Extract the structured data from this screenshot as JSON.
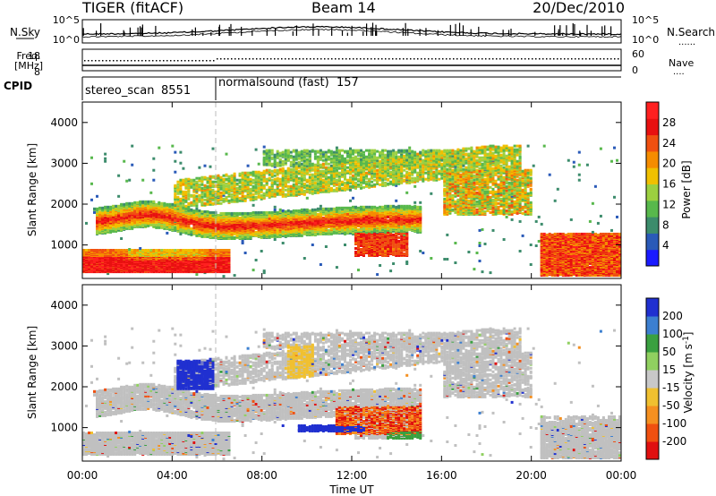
{
  "header": {
    "radar": "TIGER (fitACF)",
    "beam": "Beam 14",
    "date": "20/Dec/2010"
  },
  "noise_panel": {
    "left_label": "N.Sky",
    "left_ticks": [
      "10^5",
      "10^0"
    ],
    "right_ticks": [
      "10^5",
      "10^0"
    ],
    "right_label": "N.Search",
    "right_dotted": "......"
  },
  "freq_panel": {
    "left_label_1": "Freq.",
    "left_label_2": "[MHz]",
    "left_ticks": [
      "18",
      "8"
    ],
    "right_ticks": [
      "60",
      "0"
    ],
    "right_label": "Nave",
    "right_dotted": "...."
  },
  "cpid_panel": {
    "label": "CPID",
    "modes": [
      {
        "name": "stereo_scan",
        "id": "8551",
        "start": "00:00"
      },
      {
        "name": "normalsound (fast)",
        "id": "157",
        "start": "06:00"
      }
    ]
  },
  "time_axis": {
    "label": "Time UT",
    "ticks": [
      "00:00",
      "04:00",
      "08:00",
      "12:00",
      "16:00",
      "20:00",
      "00:00"
    ]
  },
  "colors": {
    "power_scale": [
      "#1a1aff",
      "#2a5ab8",
      "#3c8c6c",
      "#58b84c",
      "#9cd040",
      "#f0c000",
      "#f58c00",
      "#f05010",
      "#e81010",
      "#ff2020"
    ],
    "velocity_scale": [
      "#2030d0",
      "#3c7fd0",
      "#3aa040",
      "#90d060",
      "#c8c8c8",
      "#f0c030",
      "#f59020",
      "#f05010",
      "#e01010"
    ],
    "ground_scatter": "#c0c0c0"
  },
  "chart_data": [
    {
      "type": "heatmap",
      "title": "",
      "ylabel": "Slant Range [km]",
      "xlabel": "",
      "x_range": [
        "00:00",
        "24:00"
      ],
      "ylim": [
        180,
        4500
      ],
      "y_ticks": [
        1000,
        2000,
        3000,
        4000
      ],
      "colorbar": {
        "label": "Power [dB]",
        "ticks": [
          4,
          8,
          12,
          16,
          20,
          24,
          28
        ],
        "range": [
          0,
          32
        ]
      },
      "features": [
        {
          "name": "near_range_band",
          "t_hours": [
            0,
            6.5
          ],
          "range_km": [
            300,
            800
          ],
          "typical_power_db": 26
        },
        {
          "name": "main_band_1500km",
          "t_hours": [
            1,
            14.5
          ],
          "range_km": [
            1200,
            1900
          ],
          "typical_power_db": 22
        },
        {
          "name": "upper_band",
          "t_hours": [
            4,
            19.5
          ],
          "range_km": [
            2000,
            3300
          ],
          "typical_power_db": 14
        },
        {
          "name": "late_near_range",
          "t_hours": [
            20.3,
            24
          ],
          "range_km": [
            200,
            1200
          ],
          "typical_power_db": 26
        }
      ]
    },
    {
      "type": "heatmap",
      "title": "",
      "ylabel": "Slant Range [km]",
      "xlabel": "Time UT",
      "x_range": [
        "00:00",
        "24:00"
      ],
      "ylim": [
        180,
        4500
      ],
      "y_ticks": [
        1000,
        2000,
        3000,
        4000
      ],
      "colorbar": {
        "label": "Velocity [m s^-1]",
        "ticks": [
          "200",
          "100",
          "50",
          "15",
          "-15",
          "-50",
          "-100",
          "-200"
        ],
        "range": [
          -250,
          250
        ]
      },
      "features": [
        {
          "name": "ground_scatter",
          "t_hours": [
            0,
            24
          ],
          "range_km": [
            300,
            3300
          ],
          "velocity": 0
        },
        {
          "name": "positive_patch_5h",
          "t_hours": [
            4.2,
            5.8
          ],
          "range_km": [
            1900,
            2600
          ],
          "velocity": 200
        },
        {
          "name": "negative_patch_13h",
          "t_hours": [
            11.5,
            15
          ],
          "range_km": [
            700,
            1500
          ],
          "velocity": -200
        },
        {
          "name": "positive_stripe_11h",
          "t_hours": [
            9.8,
            12.5
          ],
          "range_km": [
            900,
            1000
          ],
          "velocity": 200
        }
      ]
    }
  ]
}
